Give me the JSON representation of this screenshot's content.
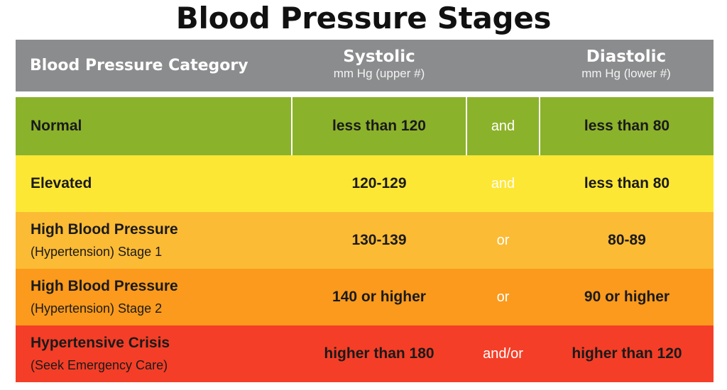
{
  "title": "Blood Pressure Stages",
  "header": {
    "category": "Blood Pressure Category",
    "systolic": "Systolic",
    "systolic_unit": "mm Hg (upper #)",
    "diastolic": "Diastolic",
    "diastolic_unit": "mm Hg (lower #)"
  },
  "rows": [
    {
      "category": "Normal",
      "note": "",
      "systolic": "less than 120",
      "conj": "and",
      "diastolic": "less than 80",
      "color": "#8bb22b"
    },
    {
      "category": "Elevated",
      "note": "",
      "systolic": "120-129",
      "conj": "and",
      "diastolic": "less than 80",
      "color": "#fde735"
    },
    {
      "category": "High Blood Pressure",
      "note": "(Hypertension) Stage 1",
      "systolic": "130-139",
      "conj": "or",
      "diastolic": "80-89",
      "color": "#fcbb34"
    },
    {
      "category": "High Blood Pressure",
      "note": "(Hypertension) Stage 2",
      "systolic": "140 or higher",
      "conj": "or",
      "diastolic": "90 or higher",
      "color": "#fb9a1c"
    },
    {
      "category": "Hypertensive Crisis",
      "note": "(Seek Emergency Care)",
      "systolic": "higher than 180",
      "conj": "and/or",
      "diastolic": "higher than 120",
      "color": "#f53e27"
    }
  ]
}
